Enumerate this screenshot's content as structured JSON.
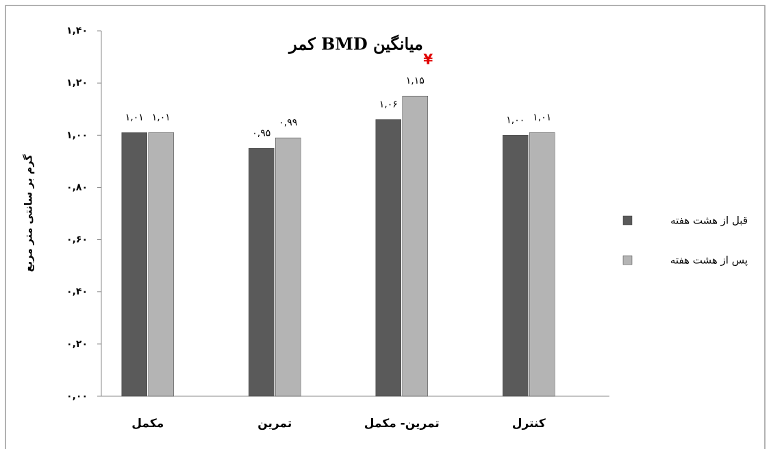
{
  "chart_data": {
    "type": "bar",
    "title": "میانگین BMD کمر",
    "y_label": "گرم بر سانتی متر مربع",
    "categories": [
      "مکمل",
      "تمرین",
      "تمرین- مکمل",
      "کنترل"
    ],
    "series": [
      {
        "name": "قبل از هشت هفته",
        "color": "#5a5a5a",
        "values": [
          1.01,
          0.95,
          1.06,
          1.0
        ],
        "value_labels": [
          "۱,۰۱",
          "۰,۹۵",
          "۱,۰۶",
          "۱,۰۰"
        ]
      },
      {
        "name": "پس از هشت هفته",
        "color": "#b4b4b4",
        "values": [
          1.01,
          0.99,
          1.15,
          1.01
        ],
        "value_labels": [
          "۱,۰۱",
          "۰,۹۹",
          "۱,۱۵",
          "۱,۰۱"
        ]
      }
    ],
    "annotations": [
      {
        "text": "¥",
        "color": "#e00000"
      }
    ],
    "ylim": [
      0,
      1.4
    ],
    "yticks": [
      {
        "value": 0,
        "label": "۰,۰۰"
      },
      {
        "value": 0.2,
        "label": "۰,۲۰"
      },
      {
        "value": 0.4,
        "label": "۰,۴۰"
      },
      {
        "value": 0.6,
        "label": "۰,۶۰"
      },
      {
        "value": 0.8,
        "label": "۰,۸۰"
      },
      {
        "value": 1.0,
        "label": "۱,۰۰"
      },
      {
        "value": 1.2,
        "label": "۱,۲۰"
      },
      {
        "value": 1.4,
        "label": "۱,۴۰"
      }
    ],
    "grid": false,
    "legend": "right"
  }
}
